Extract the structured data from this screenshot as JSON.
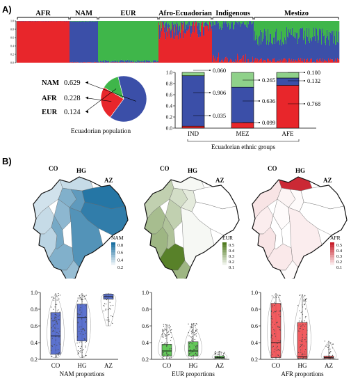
{
  "panel_a_label": "A)",
  "panel_b_label": "B)",
  "structure": {
    "groups": [
      "AFR",
      "NAM",
      "EUR",
      "Afro-Ecuadorian",
      "Indigenous",
      "Mestizo"
    ],
    "y_ticks": [
      "0.0",
      "0.2",
      "0.4",
      "0.6",
      "0.8",
      "1.0"
    ],
    "colors": {
      "NAM": "#3b4fa8",
      "AFR": "#e8262b",
      "EUR": "#3fb64a"
    }
  },
  "pie": {
    "caption": "Ecuadorian population",
    "entries": [
      {
        "label": "NAM",
        "value": "0.629"
      },
      {
        "label": "AFR",
        "value": "0.228"
      },
      {
        "label": "EUR",
        "value": "0.124"
      }
    ]
  },
  "ethnic_bars": {
    "xlabel": "Ecuadorian ethnic groups",
    "y_ticks": [
      "0.0",
      "0.2",
      "0.4",
      "0.6",
      "0.8",
      "1.0"
    ],
    "groups": [
      {
        "name": "IND",
        "AFR": "0.035",
        "NAM": "0.906",
        "EUR": "0.060"
      },
      {
        "name": "MEZ",
        "AFR": "0.099",
        "NAM": "0.636",
        "EUR": "0.265"
      },
      {
        "name": "AFE",
        "AFR": "0.768",
        "NAM": "0.132",
        "EUR": "0.100"
      }
    ]
  },
  "maps": [
    {
      "id": "NAM",
      "legend_title": "NAM",
      "legend_ticks": [
        "0.8",
        "0.6",
        "0.4",
        "0.2"
      ],
      "region_labels": [
        "CO",
        "HG",
        "AZ"
      ],
      "color": "#1a6fa0"
    },
    {
      "id": "EUR",
      "legend_title": "EUR",
      "legend_ticks": [
        "0.5",
        "0.4",
        "0.3",
        "0.2",
        "0.1"
      ],
      "region_labels": [
        "CO",
        "HG",
        "AZ"
      ],
      "color": "#4f7a1e"
    },
    {
      "id": "AFR",
      "legend_title": "AFR",
      "legend_ticks": [
        "0.5",
        "0.4",
        "0.3",
        "0.2",
        "0.1"
      ],
      "region_labels": [
        "CO",
        "HG",
        "AZ"
      ],
      "color": "#c81e2a"
    }
  ],
  "chart_data": [
    {
      "type": "bar",
      "title": "",
      "xlabel": "Ecuadorian ethnic groups",
      "ylabel": "",
      "categories": [
        "IND",
        "MEZ",
        "AFE"
      ],
      "stacked": true,
      "ylim": [
        0,
        1
      ],
      "series": [
        {
          "name": "AFR",
          "values": [
            0.035,
            0.099,
            0.768
          ]
        },
        {
          "name": "NAM",
          "values": [
            0.906,
            0.636,
            0.132
          ]
        },
        {
          "name": "EUR",
          "values": [
            0.06,
            0.265,
            0.1
          ]
        }
      ]
    },
    {
      "type": "pie",
      "title": "Ecuadorian population",
      "categories": [
        "NAM",
        "AFR",
        "EUR"
      ],
      "values": [
        0.629,
        0.228,
        0.124
      ]
    },
    {
      "type": "box",
      "xlabel": "NAM proportions",
      "categories": [
        "CO",
        "HG",
        "AZ"
      ],
      "ylim": [
        0.2,
        1.0
      ],
      "y_ticks": [
        "0.2",
        "0.4",
        "0.6",
        "0.8",
        "1.0"
      ],
      "color": "#4a63c9",
      "boxes": [
        {
          "q1": 0.26,
          "median": 0.48,
          "q3": 0.76,
          "min": 0.22,
          "max": 0.99
        },
        {
          "q1": 0.42,
          "median": 0.7,
          "q3": 0.86,
          "min": 0.22,
          "max": 0.99
        },
        {
          "q1": 0.92,
          "median": 0.95,
          "q3": 0.98,
          "min": 0.6,
          "max": 0.99
        }
      ]
    },
    {
      "type": "box",
      "xlabel": "EUR proportions",
      "categories": [
        "CO",
        "HG",
        "AZ"
      ],
      "ylim": [
        0.2,
        1.0
      ],
      "y_ticks": [
        "0.2",
        "0.4",
        "0.6",
        "0.8",
        "1.0"
      ],
      "color": "#55c44a",
      "boxes": [
        {
          "q1": 0.24,
          "median": 0.3,
          "q3": 0.38,
          "min": 0.2,
          "max": 0.62
        },
        {
          "q1": 0.24,
          "median": 0.3,
          "q3": 0.41,
          "min": 0.2,
          "max": 0.63
        },
        {
          "q1": 0.21,
          "median": 0.22,
          "q3": 0.24,
          "min": 0.2,
          "max": 0.3
        }
      ]
    },
    {
      "type": "box",
      "xlabel": "AFR proportions",
      "categories": [
        "CO",
        "HG",
        "AZ"
      ],
      "ylim": [
        0.2,
        1.0
      ],
      "y_ticks": [
        "0.2",
        "0.4",
        "0.6",
        "0.8",
        "1.0"
      ],
      "color": "#ef4a4f",
      "boxes": [
        {
          "q1": 0.22,
          "median": 0.4,
          "q3": 0.87,
          "min": 0.2,
          "max": 0.99
        },
        {
          "q1": 0.21,
          "median": 0.23,
          "q3": 0.64,
          "min": 0.2,
          "max": 0.98
        },
        {
          "q1": 0.21,
          "median": 0.22,
          "q3": 0.24,
          "min": 0.2,
          "max": 0.42
        }
      ]
    }
  ]
}
